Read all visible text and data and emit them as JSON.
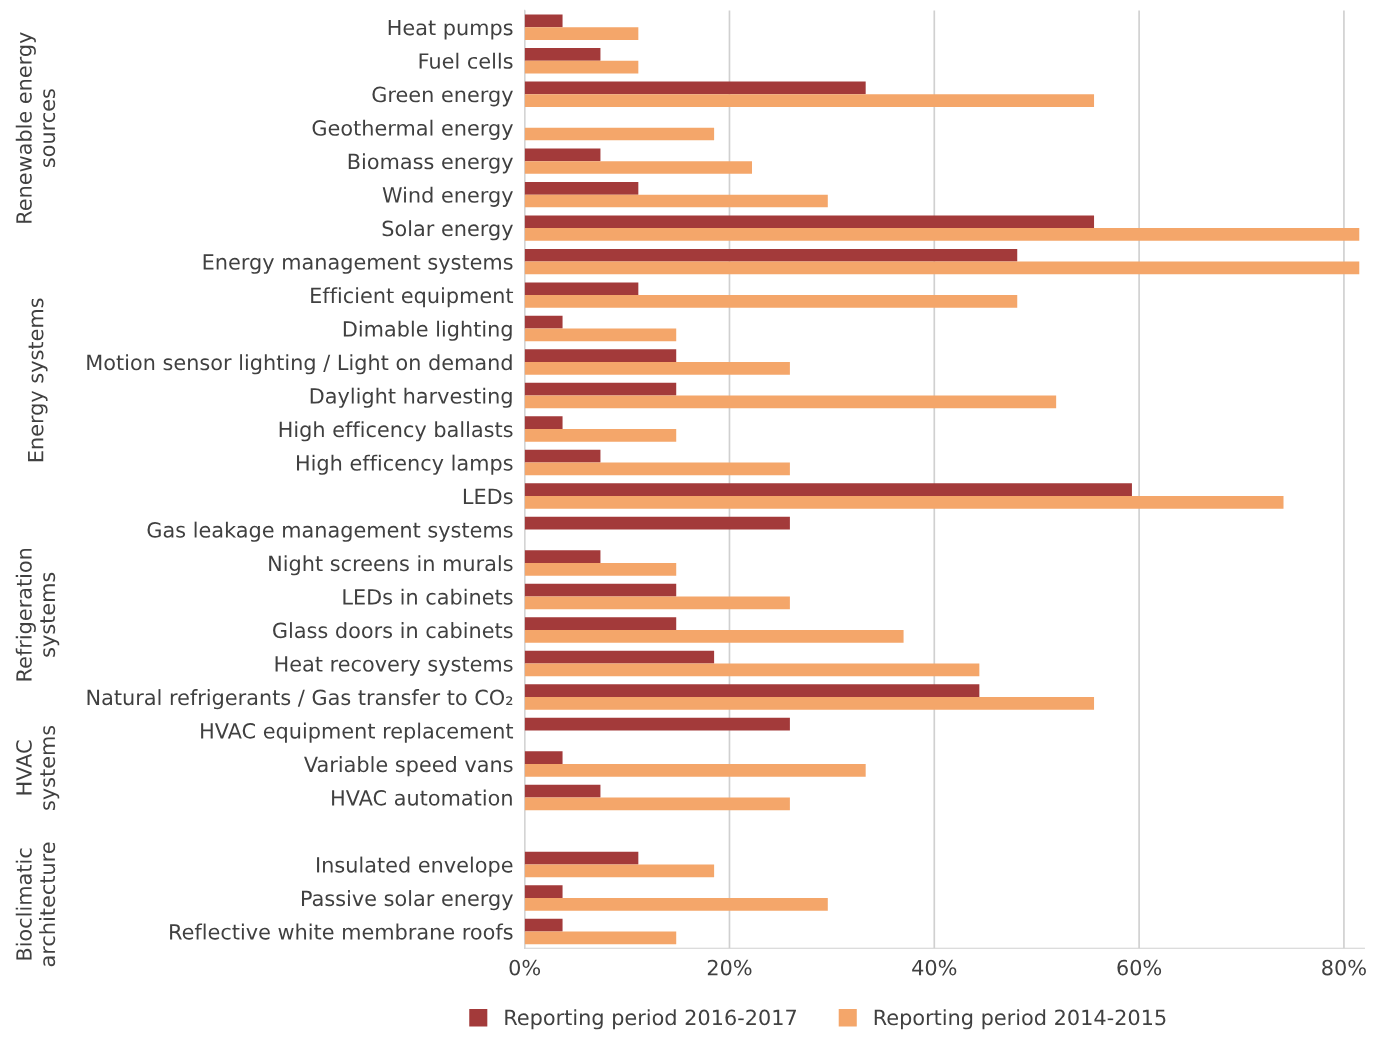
{
  "chart_data": {
    "type": "bar",
    "orientation": "horizontal",
    "categories": [
      "Heat pumps",
      "Fuel cells",
      "Green energy",
      "Geothermal energy",
      "Biomass energy",
      "Wind energy",
      "Solar energy",
      "Energy management systems",
      "Efficient equipment",
      "Dimable lighting",
      "Motion sensor lighting / Light on demand",
      "Daylight harvesting",
      "High efficency ballasts",
      "High efficency lamps",
      "LEDs",
      "Gas leakage management systems",
      "Night screens in murals",
      "LEDs in cabinets",
      "Glass doors in cabinets",
      "Heat recovery systems",
      "Natural refrigerants / Gas transfer to CO₂",
      "HVAC equipment replacement",
      "Variable speed vans",
      "HVAC automation",
      null,
      "Insulated envelope",
      "Passive solar energy",
      "Reflective white membrane roofs"
    ],
    "series": [
      {
        "name": "Reporting period 2016-2017",
        "color": "#a33a3a",
        "values": [
          3.7,
          7.4,
          33.3,
          null,
          7.4,
          11.1,
          55.6,
          48.1,
          11.1,
          3.7,
          14.8,
          14.8,
          3.7,
          7.4,
          59.3,
          25.9,
          7.4,
          14.8,
          14.8,
          18.5,
          44.4,
          25.9,
          3.7,
          7.4,
          null,
          11.1,
          3.7,
          3.7
        ]
      },
      {
        "name": "Reporting period 2014-2015",
        "color": "#f4a66a",
        "values": [
          11.1,
          11.1,
          55.6,
          18.5,
          22.2,
          29.6,
          81.5,
          81.5,
          48.1,
          14.8,
          25.9,
          51.9,
          14.8,
          25.9,
          74.1,
          null,
          14.8,
          25.9,
          37.0,
          44.4,
          55.6,
          null,
          33.3,
          25.9,
          null,
          18.5,
          29.6,
          14.8
        ]
      }
    ],
    "xlim": [
      0,
      82
    ],
    "xticks": [
      {
        "value": 0,
        "label": "0%"
      },
      {
        "value": 20,
        "label": "20%"
      },
      {
        "value": 40,
        "label": "40%"
      },
      {
        "value": 60,
        "label": "60%"
      },
      {
        "value": 80,
        "label": "80%"
      }
    ],
    "grid": "x",
    "legend": "bottom",
    "annotations": [
      "Renewable energy\nsources",
      "Energy systems",
      "Refrigeration\nsystems",
      "HVAC\nsystems",
      "Bioclimatic\narchitecture"
    ]
  }
}
